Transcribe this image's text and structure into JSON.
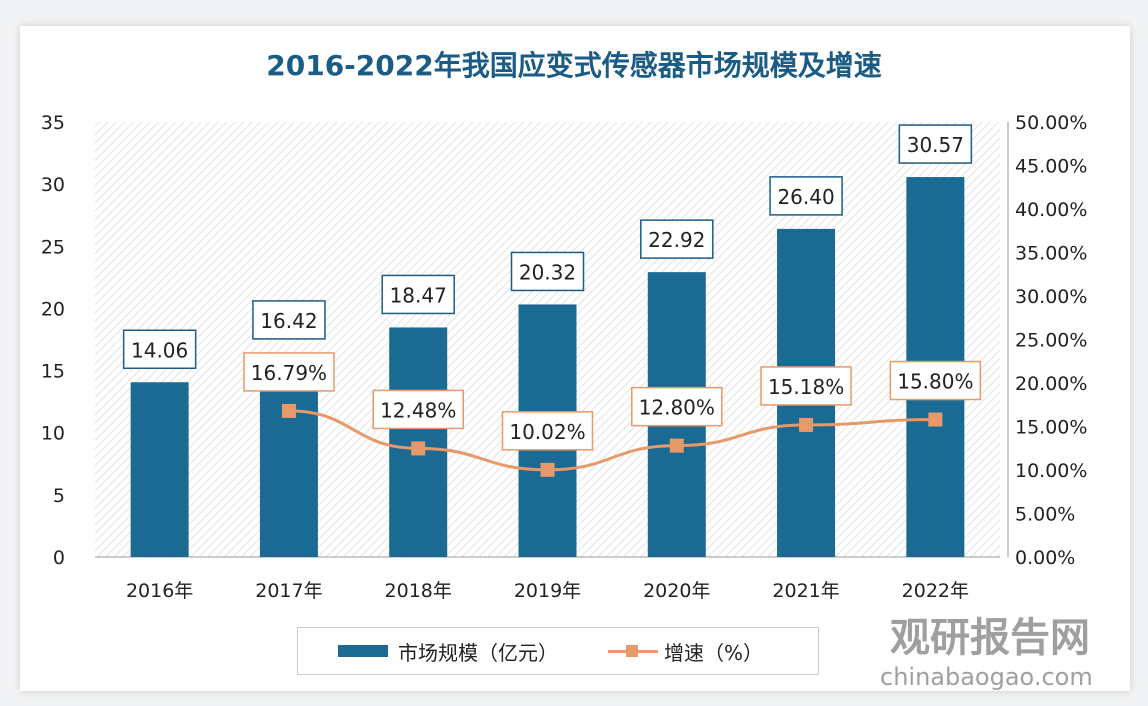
{
  "chart_data": {
    "type": "bar+line",
    "title": "2016-2022年我国应变式传感器市场规模及增速",
    "categories": [
      "2016年",
      "2017年",
      "2018年",
      "2019年",
      "2020年",
      "2021年",
      "2022年"
    ],
    "series": [
      {
        "name": "市场规模（亿元）",
        "type": "bar",
        "axis": "left",
        "values": [
          14.06,
          16.42,
          18.47,
          20.32,
          22.92,
          26.4,
          30.57
        ],
        "labels": [
          "14.06",
          "16.42",
          "18.47",
          "20.32",
          "22.92",
          "26.40",
          "30.57"
        ],
        "color": "#1b6a94"
      },
      {
        "name": "增速（%）",
        "type": "line",
        "axis": "right",
        "values": [
          null,
          16.79,
          12.48,
          10.02,
          12.8,
          15.18,
          15.8
        ],
        "labels": [
          "",
          "16.79%",
          "12.48%",
          "10.02%",
          "12.80%",
          "15.18%",
          "15.80%"
        ],
        "color": "#e8996a"
      }
    ],
    "left_axis": {
      "min": 0,
      "max": 35,
      "ticks": [
        "0",
        "5",
        "10",
        "15",
        "20",
        "25",
        "30",
        "35"
      ]
    },
    "right_axis": {
      "min": 0,
      "max": 50,
      "ticks": [
        "0.00%",
        "5.00%",
        "10.00%",
        "15.00%",
        "20.00%",
        "25.00%",
        "30.00%",
        "35.00%",
        "40.00%",
        "45.00%",
        "50.00%"
      ]
    },
    "legend": "bottom"
  },
  "watermark": {
    "cn": "观研报告网",
    "en": "chinabaogao.com"
  }
}
